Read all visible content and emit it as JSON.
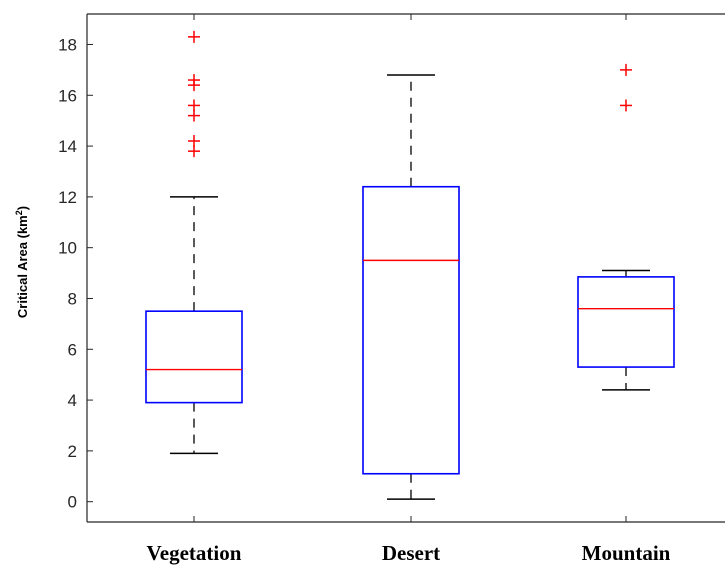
{
  "chart_data": {
    "type": "box",
    "ylabel": "Critical Area (km",
    "ylabel_superscript": "2",
    "ylabel_suffix": ")",
    "ylim": [
      -0.8,
      19.2
    ],
    "yticks": [
      0,
      2,
      4,
      6,
      8,
      10,
      12,
      14,
      16,
      18
    ],
    "grid": false,
    "categories": [
      "Vegetation",
      "Desert",
      "Mountain"
    ],
    "boxes": [
      {
        "category": "Vegetation",
        "whisker_low": 1.9,
        "q1": 3.9,
        "median": 5.2,
        "q3": 7.5,
        "whisker_high": 12.0,
        "outliers": [
          18.3,
          16.6,
          16.4,
          15.6,
          15.2,
          14.2,
          13.8
        ]
      },
      {
        "category": "Desert",
        "whisker_low": 0.1,
        "q1": 1.1,
        "median": 9.5,
        "q3": 12.4,
        "whisker_high": 16.8,
        "outliers": []
      },
      {
        "category": "Mountain",
        "whisker_low": 4.4,
        "q1": 5.3,
        "median": 7.6,
        "q3": 8.85,
        "whisker_high": 9.1,
        "outliers": [
          17.0,
          15.6
        ]
      }
    ],
    "colors": {
      "box": "#0000ff",
      "median": "#ff0000",
      "whisker": "#000000",
      "outlier": "#ff0000",
      "axis": "#262626"
    }
  }
}
